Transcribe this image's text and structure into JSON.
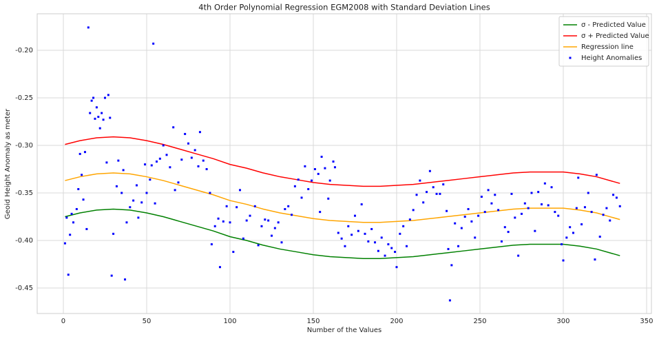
{
  "chart_data": {
    "type": "scatter",
    "title": "4th Order Polynomial Regression EGM2008 with Standard Deviation Lines",
    "xlabel": "Number of the Values",
    "ylabel": "Geoid Height Anomaly as meter",
    "xlim": [
      -15.7,
      352.9
    ],
    "xticks": [
      0,
      50,
      100,
      150,
      200,
      250,
      300,
      350
    ],
    "ylim": [
      -0.4768,
      -0.1616
    ],
    "yticks": [
      {
        "value": -0.45,
        "label": "-0.45"
      },
      {
        "value": -0.4,
        "label": "-0.40"
      },
      {
        "value": -0.35,
        "label": "-0.35"
      },
      {
        "value": -0.3,
        "label": "-0.30"
      },
      {
        "value": -0.25,
        "label": "-0.25"
      },
      {
        "value": -0.2,
        "label": "-0.20"
      }
    ],
    "grid": true,
    "legend": "upper right",
    "series": [
      {
        "name": "σ - Predicted Value",
        "mark": "line",
        "color": "#008000",
        "x": [
          1,
          10,
          20,
          30,
          40,
          50,
          60,
          70,
          80,
          90,
          100,
          110,
          120,
          130,
          140,
          150,
          160,
          170,
          180,
          190,
          200,
          210,
          220,
          230,
          240,
          250,
          260,
          270,
          280,
          290,
          300,
          310,
          320,
          330,
          334
        ],
        "values": [
          -0.375,
          -0.371,
          -0.368,
          -0.367,
          -0.368,
          -0.371,
          -0.375,
          -0.38,
          -0.385,
          -0.39,
          -0.396,
          -0.4,
          -0.405,
          -0.409,
          -0.412,
          -0.415,
          -0.417,
          -0.418,
          -0.419,
          -0.419,
          -0.418,
          -0.417,
          -0.415,
          -0.413,
          -0.411,
          -0.409,
          -0.407,
          -0.405,
          -0.404,
          -0.404,
          -0.404,
          -0.406,
          -0.409,
          -0.414,
          -0.416
        ]
      },
      {
        "name": "σ + Predicted Value",
        "mark": "line",
        "color": "#ff0000",
        "x": [
          1,
          10,
          20,
          30,
          40,
          50,
          60,
          70,
          80,
          90,
          100,
          110,
          120,
          130,
          140,
          150,
          160,
          170,
          180,
          190,
          200,
          210,
          220,
          230,
          240,
          250,
          260,
          270,
          280,
          290,
          300,
          310,
          320,
          330,
          334
        ],
        "values": [
          -0.299,
          -0.295,
          -0.292,
          -0.291,
          -0.292,
          -0.295,
          -0.299,
          -0.304,
          -0.309,
          -0.314,
          -0.32,
          -0.324,
          -0.329,
          -0.333,
          -0.336,
          -0.339,
          -0.341,
          -0.342,
          -0.343,
          -0.343,
          -0.342,
          -0.341,
          -0.339,
          -0.337,
          -0.335,
          -0.333,
          -0.331,
          -0.329,
          -0.328,
          -0.328,
          -0.328,
          -0.33,
          -0.333,
          -0.338,
          -0.34
        ]
      },
      {
        "name": "Regression line",
        "mark": "line",
        "color": "#ffa500",
        "x": [
          1,
          10,
          20,
          30,
          40,
          50,
          60,
          70,
          80,
          90,
          100,
          110,
          120,
          130,
          140,
          150,
          160,
          170,
          180,
          190,
          200,
          210,
          220,
          230,
          240,
          250,
          260,
          270,
          280,
          290,
          300,
          310,
          320,
          330,
          334
        ],
        "values": [
          -0.337,
          -0.333,
          -0.33,
          -0.329,
          -0.33,
          -0.333,
          -0.337,
          -0.342,
          -0.347,
          -0.352,
          -0.358,
          -0.362,
          -0.367,
          -0.371,
          -0.374,
          -0.377,
          -0.379,
          -0.38,
          -0.381,
          -0.381,
          -0.38,
          -0.379,
          -0.377,
          -0.375,
          -0.373,
          -0.371,
          -0.369,
          -0.367,
          -0.366,
          -0.366,
          -0.366,
          -0.368,
          -0.371,
          -0.376,
          -0.378
        ]
      },
      {
        "name": "Height Anomalies",
        "mark": "point",
        "color": "#0000ff",
        "x": [
          1,
          2,
          3,
          4,
          5,
          6,
          8,
          9,
          10,
          11,
          12,
          13,
          14,
          15,
          16,
          17,
          18,
          19,
          20,
          21,
          22,
          23,
          24,
          25,
          26,
          27,
          28,
          29,
          30,
          32,
          33,
          35,
          36,
          37,
          38,
          40,
          42,
          44,
          45,
          47,
          49,
          50,
          52,
          53,
          54,
          55,
          56,
          58,
          60,
          62,
          64,
          66,
          67,
          69,
          71,
          73,
          75,
          77,
          79,
          81,
          82,
          84,
          86,
          88,
          89,
          91,
          93,
          94,
          96,
          98,
          100,
          102,
          104,
          106,
          108,
          110,
          112,
          115,
          117,
          119,
          121,
          123,
          125,
          127,
          129,
          131,
          133,
          135,
          137,
          139,
          141,
          143,
          145,
          147,
          149,
          151,
          153,
          154,
          155,
          157,
          159,
          160,
          162,
          163,
          165,
          167,
          169,
          171,
          173,
          175,
          177,
          179,
          181,
          183,
          185,
          187,
          189,
          191,
          193,
          195,
          197,
          199,
          200,
          202,
          204,
          206,
          208,
          210,
          212,
          214,
          216,
          218,
          220,
          222,
          224,
          226,
          228,
          230,
          231,
          232,
          233,
          235,
          237,
          239,
          241,
          243,
          245,
          247,
          249,
          251,
          253,
          255,
          257,
          259,
          261,
          263,
          265,
          267,
          269,
          271,
          273,
          275,
          277,
          279,
          281,
          283,
          285,
          287,
          289,
          291,
          293,
          295,
          297,
          299,
          300,
          302,
          304,
          306,
          308,
          309,
          311,
          313,
          315,
          317,
          319,
          320,
          322,
          324,
          326,
          328,
          330,
          332,
          334
        ],
        "values": [
          -0.403,
          -0.376,
          -0.436,
          -0.394,
          -0.372,
          -0.381,
          -0.367,
          -0.346,
          -0.309,
          -0.331,
          -0.357,
          -0.307,
          -0.388,
          -0.176,
          -0.266,
          -0.253,
          -0.25,
          -0.272,
          -0.26,
          -0.27,
          -0.282,
          -0.266,
          -0.273,
          -0.25,
          -0.318,
          -0.247,
          -0.271,
          -0.437,
          -0.393,
          -0.343,
          -0.316,
          -0.35,
          -0.326,
          -0.441,
          -0.381,
          -0.365,
          -0.358,
          -0.342,
          -0.376,
          -0.36,
          -0.32,
          -0.35,
          -0.336,
          -0.321,
          -0.193,
          -0.361,
          -0.317,
          -0.314,
          -0.3,
          -0.31,
          -0.323,
          -0.281,
          -0.347,
          -0.339,
          -0.315,
          -0.288,
          -0.298,
          -0.313,
          -0.305,
          -0.322,
          -0.286,
          -0.316,
          -0.325,
          -0.35,
          -0.404,
          -0.385,
          -0.377,
          -0.428,
          -0.38,
          -0.364,
          -0.381,
          -0.412,
          -0.365,
          -0.347,
          -0.398,
          -0.379,
          -0.374,
          -0.364,
          -0.405,
          -0.385,
          -0.378,
          -0.379,
          -0.395,
          -0.387,
          -0.381,
          -0.402,
          -0.367,
          -0.364,
          -0.373,
          -0.343,
          -0.336,
          -0.355,
          -0.322,
          -0.346,
          -0.337,
          -0.325,
          -0.33,
          -0.37,
          -0.312,
          -0.324,
          -0.356,
          -0.337,
          -0.317,
          -0.323,
          -0.392,
          -0.398,
          -0.406,
          -0.385,
          -0.394,
          -0.374,
          -0.39,
          -0.362,
          -0.393,
          -0.401,
          -0.388,
          -0.402,
          -0.411,
          -0.397,
          -0.416,
          -0.404,
          -0.408,
          -0.412,
          -0.428,
          -0.393,
          -0.385,
          -0.406,
          -0.378,
          -0.368,
          -0.352,
          -0.337,
          -0.36,
          -0.349,
          -0.327,
          -0.344,
          -0.351,
          -0.351,
          -0.341,
          -0.369,
          -0.409,
          -0.463,
          -0.426,
          -0.382,
          -0.406,
          -0.387,
          -0.375,
          -0.367,
          -0.38,
          -0.397,
          -0.374,
          -0.354,
          -0.37,
          -0.347,
          -0.361,
          -0.352,
          -0.368,
          -0.401,
          -0.386,
          -0.391,
          -0.351,
          -0.376,
          -0.416,
          -0.372,
          -0.361,
          -0.366,
          -0.35,
          -0.39,
          -0.349,
          -0.362,
          -0.34,
          -0.363,
          -0.344,
          -0.37,
          -0.374,
          -0.404,
          -0.421,
          -0.397,
          -0.386,
          -0.392,
          -0.366,
          -0.334,
          -0.383,
          -0.365,
          -0.35,
          -0.37,
          -0.42,
          -0.331,
          -0.396,
          -0.373,
          -0.366,
          -0.379,
          -0.352,
          -0.355,
          -0.364
        ]
      }
    ]
  }
}
